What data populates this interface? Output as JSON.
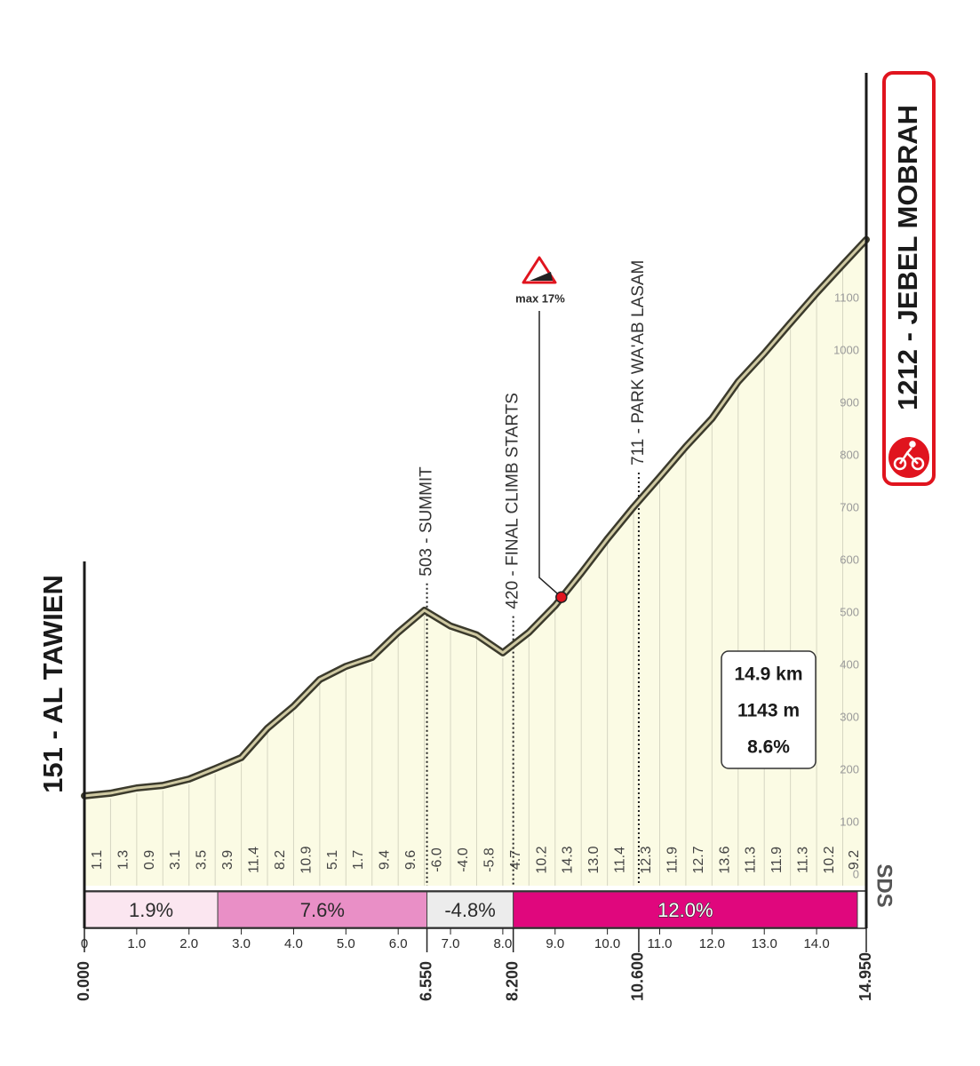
{
  "chart_data": {
    "type": "elevation-profile",
    "start_label": "151 - AL TAWIEN",
    "finish_label": "1212 - JEBEL MOBRAH",
    "x": [
      0,
      0.5,
      1,
      1.5,
      2,
      2.5,
      3,
      3.5,
      4,
      4.5,
      5,
      5.5,
      6,
      6.5,
      7,
      7.5,
      8,
      8.5,
      9,
      9.5,
      10,
      10.5,
      11,
      11.5,
      12,
      12.5,
      13,
      13.5,
      14,
      14.5,
      14.95
    ],
    "values": [
      151,
      156,
      166,
      171,
      183,
      203,
      224,
      280,
      322,
      373,
      398,
      415,
      463,
      505,
      475,
      458,
      424,
      463,
      514,
      576,
      641,
      702,
      759,
      817,
      871,
      941,
      995,
      1053,
      1110,
      1164,
      1212
    ],
    "gradients": {
      "values": [
        1.1,
        1.3,
        0.9,
        3.1,
        3.5,
        3.9,
        11.4,
        8.2,
        10.9,
        5.1,
        1.7,
        9.4,
        9.6,
        -6,
        -4,
        -5.8,
        4.7,
        10.2,
        14.3,
        13,
        11.4,
        12.3,
        11.9,
        12.7,
        13.6,
        11.3,
        11.9,
        11.3,
        10.2,
        9.2
      ],
      "value_labels": [
        "1.1",
        "1.3",
        "0.9",
        "3.1",
        "3.5",
        "3.9",
        "11.4",
        "8.2",
        "10.9",
        "5.1",
        "1.7",
        "9.4",
        "9.6",
        "-6.0",
        "-4.0",
        "-5.8",
        "4.7",
        "10.2",
        "14.3",
        "13.0",
        "11.4",
        "12.3",
        "11.9",
        "12.7",
        "13.6",
        "11.3",
        "11.9",
        "11.3",
        "10.2",
        "9.2"
      ]
    },
    "bands": {
      "starts": [
        0,
        2.55,
        6.55,
        8.2
      ],
      "ends": [
        2.55,
        6.55,
        8.2,
        14.78
      ],
      "values": [
        1.9,
        7.6,
        -4.8,
        12
      ],
      "value_labels": [
        "1.9%",
        "7.6%",
        "-4.8%",
        "12.0%"
      ],
      "colors": [
        "#fbe6f0",
        "#e98fc6",
        "#ececec",
        "#e0077d"
      ]
    },
    "xlim": [
      0,
      14.95
    ],
    "xticks": [
      0,
      {
        "value": 1,
        "label": "1.0"
      },
      {
        "value": 2,
        "label": "2.0"
      },
      {
        "value": 3,
        "label": "3.0"
      },
      {
        "value": 4,
        "label": "4.0"
      },
      {
        "value": 5,
        "label": "5.0"
      },
      {
        "value": 6,
        "label": "6.0"
      },
      {
        "value": 7,
        "label": "7.0"
      },
      {
        "value": 8,
        "label": "8.0"
      },
      {
        "value": 9,
        "label": "9.0"
      },
      {
        "value": 10,
        "label": "10.0"
      },
      {
        "value": 11,
        "label": "11.0"
      },
      {
        "value": 12,
        "label": "12.0"
      },
      {
        "value": 13,
        "label": "13.0"
      },
      {
        "value": 14,
        "label": "14.0"
      }
    ],
    "key_distances": [
      {
        "value": 0,
        "label": "0.000"
      },
      {
        "value": 6.55,
        "label": "6.550"
      },
      {
        "value": 8.2,
        "label": "8.200"
      },
      {
        "value": 10.6,
        "label": "10.600"
      },
      {
        "value": 14.95,
        "label": "14.950"
      }
    ],
    "ylim": [
      0,
      1220
    ],
    "yticks": [
      0,
      100,
      200,
      300,
      400,
      500,
      600,
      700,
      800,
      900,
      1000,
      1100
    ],
    "annotations": [
      {
        "x": 6.55,
        "label": "503 - SUMMIT"
      },
      {
        "x": 8.2,
        "label": "420 - FINAL CLIMB STARTS"
      },
      {
        "x": 10.6,
        "label": "711 - PARK WA'AB LASAM"
      }
    ],
    "max_gradient": {
      "x": 9.12,
      "y": 530,
      "label": "max 17%"
    },
    "stats": [
      "14.9 km",
      "1143 m",
      "8.6%"
    ],
    "colors": {
      "fill": "#fbfbe4",
      "line": "#3b3a2c",
      "line_highlight": "#cfc9a2"
    }
  },
  "logo": "SDS"
}
